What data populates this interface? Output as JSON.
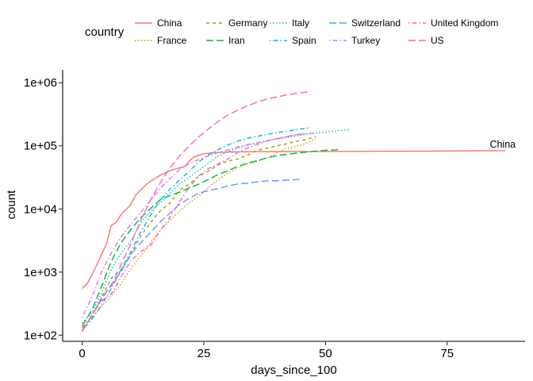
{
  "chart_data": {
    "type": "line",
    "xlabel": "days_since_100",
    "ylabel": "count",
    "y_scale": "log10",
    "xlim": [
      -4,
      91
    ],
    "ylim": [
      80,
      1600000
    ],
    "x_ticks": [
      0,
      25,
      50,
      75
    ],
    "x_tick_labels": [
      "0",
      "25",
      "50",
      "75"
    ],
    "y_ticks": [
      100,
      1000,
      10000,
      100000,
      1000000
    ],
    "y_tick_labels": [
      "1e+02",
      "1e+03",
      "1e+04",
      "1e+05",
      "1e+06"
    ],
    "grid": false,
    "legend": {
      "title": "country",
      "placement": "top",
      "columns": 6
    },
    "annotations": [
      {
        "text": "China",
        "x": 87,
        "y": 84000
      }
    ],
    "series": [
      {
        "name": "China",
        "color": "#F8766D",
        "dash": "solid",
        "x": [
          0,
          1,
          2,
          3,
          4,
          5,
          6,
          7,
          8,
          9,
          10,
          11,
          12,
          13,
          14,
          15,
          16,
          17,
          18,
          19,
          20,
          21,
          22,
          23,
          25,
          27,
          30,
          35,
          40,
          45,
          50,
          60,
          70,
          80,
          87
        ],
        "y": [
          550,
          650,
          900,
          1300,
          1900,
          2800,
          5500,
          6100,
          8200,
          9700,
          11800,
          16600,
          19900,
          23700,
          27400,
          30500,
          34100,
          37200,
          40200,
          42600,
          44700,
          46600,
          57000,
          67000,
          75000,
          77700,
          79900,
          80800,
          81000,
          81200,
          81500,
          82000,
          82500,
          83500,
          84000
        ]
      },
      {
        "name": "France",
        "color": "#D39200",
        "dash": "dotted",
        "x": [
          0,
          2,
          4,
          6,
          8,
          10,
          12,
          14,
          16,
          18,
          20,
          22,
          24,
          26,
          28,
          30,
          32,
          34,
          36,
          38,
          40,
          42,
          44,
          46,
          48
        ],
        "y": [
          130,
          191,
          285,
          423,
          653,
          1126,
          1784,
          2876,
          4469,
          6633,
          9134,
          12475,
          16018,
          22302,
          29155,
          37145,
          44550,
          52128,
          56989,
          64338,
          77226,
          90848,
          98010,
          109069,
          130000
        ]
      },
      {
        "name": "Germany",
        "color": "#93AA00",
        "dash": "dashed",
        "x": [
          0,
          2,
          4,
          6,
          8,
          10,
          12,
          14,
          16,
          18,
          20,
          22,
          24,
          26,
          28,
          30,
          32,
          34,
          36,
          38,
          40,
          42,
          44,
          46,
          48
        ],
        "y": [
          130,
          196,
          400,
          800,
          1100,
          1900,
          3700,
          6000,
          9300,
          12300,
          19800,
          24900,
          32900,
          40000,
          50000,
          57600,
          62100,
          71800,
          84800,
          92100,
          100100,
          107700,
          118200,
          125500,
          141000
        ]
      },
      {
        "name": "Iran",
        "color": "#00BA38",
        "dash": "longdash",
        "x": [
          0,
          2,
          4,
          6,
          8,
          10,
          12,
          14,
          16,
          18,
          20,
          22,
          24,
          26,
          28,
          30,
          32,
          34,
          36,
          38,
          40,
          42,
          44,
          46,
          48,
          50,
          52,
          53
        ],
        "y": [
          140,
          250,
          590,
          1500,
          2900,
          4700,
          7200,
          10100,
          13900,
          16200,
          18400,
          21600,
          24800,
          29400,
          35400,
          40300,
          47600,
          53200,
          58200,
          64600,
          70000,
          73300,
          76400,
          79500,
          82200,
          85000,
          86500,
          88000
        ]
      },
      {
        "name": "Italy",
        "color": "#00C19F",
        "dash": "dotted",
        "x": [
          0,
          2,
          4,
          6,
          8,
          10,
          12,
          14,
          16,
          18,
          20,
          22,
          24,
          26,
          28,
          30,
          32,
          34,
          36,
          38,
          40,
          42,
          44,
          46,
          48,
          50,
          52,
          55
        ],
        "y": [
          155,
          229,
          470,
          1100,
          2000,
          3100,
          5900,
          9100,
          12500,
          17700,
          24700,
          31500,
          41000,
          53500,
          69200,
          80500,
          92500,
          101700,
          110600,
          119800,
          128900,
          135600,
          143600,
          152300,
          159500,
          165200,
          172400,
          180000
        ]
      },
      {
        "name": "Spain",
        "color": "#00B9E3",
        "dash": "dotdash",
        "x": [
          0,
          2,
          4,
          6,
          8,
          10,
          12,
          14,
          16,
          18,
          20,
          22,
          24,
          26,
          28,
          30,
          32,
          34,
          36,
          38,
          40,
          42,
          44,
          46,
          47
        ],
        "y": [
          120,
          180,
          300,
          550,
          1100,
          2100,
          4200,
          7800,
          13700,
          20400,
          28600,
          39700,
          56200,
          72200,
          87900,
          104100,
          119200,
          131600,
          141900,
          152400,
          161900,
          170100,
          180000,
          190000,
          195000
        ]
      },
      {
        "name": "Switzerland",
        "color": "#619CFF",
        "dash": "longdash",
        "x": [
          0,
          2,
          4,
          6,
          8,
          10,
          12,
          14,
          16,
          18,
          20,
          22,
          24,
          26,
          28,
          30,
          32,
          34,
          36,
          38,
          40,
          42,
          44,
          45
        ],
        "y": [
          115,
          210,
          370,
          640,
          1000,
          1900,
          2900,
          4200,
          6200,
          8500,
          11800,
          14800,
          17800,
          19600,
          21100,
          23200,
          24900,
          25700,
          26800,
          27900,
          28000,
          28700,
          29100,
          29500
        ]
      },
      {
        "name": "Turkey",
        "color": "#DB72FB",
        "dash": "dotdash",
        "x": [
          0,
          2,
          4,
          6,
          8,
          10,
          12,
          14,
          16,
          18,
          20,
          22,
          24,
          26,
          28,
          30,
          32,
          34,
          36,
          38,
          40,
          42,
          44,
          46,
          48
        ],
        "y": [
          190,
          400,
          1000,
          2000,
          3600,
          5700,
          8800,
          13500,
          20900,
          30200,
          42300,
          52100,
          61000,
          69400,
          78500,
          86300,
          95600,
          104900,
          112300,
          120200,
          130000,
          140000,
          150000,
          155000,
          158000
        ]
      },
      {
        "name": "United Kingdom",
        "color": "#FF61C3",
        "dash": "dotdash",
        "x": [
          0,
          2,
          4,
          6,
          8,
          10,
          12,
          14,
          16,
          18,
          20,
          22,
          24,
          26,
          28,
          30,
          32,
          34,
          36,
          38,
          40,
          42,
          44,
          46
        ],
        "y": [
          115,
          210,
          350,
          450,
          830,
          1500,
          2100,
          2600,
          4500,
          7300,
          13000,
          22100,
          33700,
          43800,
          52200,
          62000,
          79000,
          92700,
          105000,
          120000,
          130000,
          140000,
          150000,
          160000
        ]
      },
      {
        "name": "US",
        "color": "#FF62BC",
        "dash": "longdash",
        "x": [
          0,
          2,
          4,
          6,
          8,
          10,
          12,
          14,
          16,
          18,
          20,
          22,
          24,
          26,
          28,
          30,
          32,
          34,
          36,
          38,
          40,
          42,
          44,
          46,
          47
        ],
        "y": [
          120,
          200,
          400,
          600,
          1300,
          2800,
          6500,
          13600,
          25500,
          44000,
          69000,
          100000,
          140000,
          186000,
          245000,
          310000,
          368000,
          432000,
          492000,
          553000,
          596000,
          640000,
          680000,
          710000,
          730000
        ]
      }
    ]
  }
}
